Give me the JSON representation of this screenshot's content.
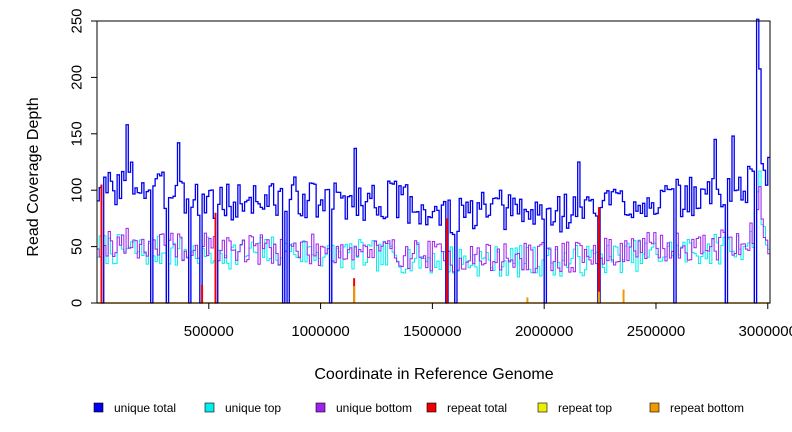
{
  "chart_data": {
    "type": "line",
    "title": "",
    "xlabel": "Coordinate in Reference Genome",
    "ylabel": "Read Coverage Depth",
    "xlim": [
      0,
      3000000
    ],
    "ylim": [
      0,
      250
    ],
    "x_ticks": [
      500000,
      1000000,
      1500000,
      2000000,
      2500000,
      3000000
    ],
    "x_tick_labels": [
      "500000",
      "1000000",
      "1500000",
      "2000000",
      "2500000",
      "3000000"
    ],
    "y_ticks": [
      0,
      50,
      100,
      150,
      200,
      250
    ],
    "y_tick_labels": [
      "0",
      "50",
      "100",
      "150",
      "200",
      "250"
    ],
    "grid": false,
    "legend_position": "bottom",
    "bin_width": 10000,
    "legend": [
      {
        "name": "unique total",
        "color": "#0000EE"
      },
      {
        "name": "unique top",
        "color": "#00EEEE"
      },
      {
        "name": "unique bottom",
        "color": "#A020F0"
      },
      {
        "name": "repeat total",
        "color": "#EE0000"
      },
      {
        "name": "repeat top",
        "color": "#EEEE00"
      },
      {
        "name": "repeat bottom",
        "color": "#EE9A00"
      }
    ],
    "series": [
      {
        "name": "unique total",
        "color": "#0000EE",
        "x": [
          0,
          100000,
          150000,
          200000,
          300000,
          350000,
          400000,
          450000,
          500000,
          600000,
          700000,
          800000,
          900000,
          1000000,
          1100000,
          1200000,
          1300000,
          1400000,
          1500000,
          1600000,
          1700000,
          1800000,
          1900000,
          2000000,
          2100000,
          2200000,
          2300000,
          2400000,
          2500000,
          2600000,
          2700000,
          2800000,
          2900000,
          2940000,
          2950000,
          2960000,
          2970000,
          3000000
        ],
        "y": [
          100,
          105,
          110,
          103,
          98,
          108,
          95,
          90,
          92,
          88,
          93,
          90,
          95,
          88,
          92,
          90,
          92,
          88,
          78,
          75,
          80,
          82,
          80,
          78,
          82,
          85,
          90,
          90,
          92,
          92,
          95,
          98,
          102,
          115,
          245,
          210,
          130,
          115
        ],
        "spikes": [
          {
            "x": 130000,
            "y": 158
          },
          {
            "x": 360000,
            "y": 142
          },
          {
            "x": 1150000,
            "y": 137
          },
          {
            "x": 2150000,
            "y": 125
          },
          {
            "x": 2760000,
            "y": 145
          },
          {
            "x": 2840000,
            "y": 148
          }
        ]
      },
      {
        "name": "unique top",
        "color": "#00EEEE",
        "x": [
          0,
          200000,
          400000,
          600000,
          800000,
          1000000,
          1200000,
          1400000,
          1600000,
          1800000,
          2000000,
          2200000,
          2400000,
          2600000,
          2800000,
          2940000,
          2955000,
          2970000,
          3000000
        ],
        "y": [
          48,
          46,
          45,
          44,
          46,
          44,
          42,
          40,
          38,
          37,
          37,
          38,
          42,
          45,
          48,
          55,
          138,
          70,
          55
        ]
      },
      {
        "name": "unique bottom",
        "color": "#A020F0",
        "x": [
          0,
          200000,
          400000,
          600000,
          800000,
          1000000,
          1200000,
          1400000,
          1600000,
          1800000,
          2000000,
          2200000,
          2400000,
          2600000,
          2800000,
          2940000,
          2955000,
          2970000,
          3000000
        ],
        "y": [
          55,
          52,
          50,
          48,
          48,
          47,
          46,
          44,
          40,
          40,
          40,
          42,
          48,
          50,
          52,
          58,
          105,
          62,
          50
        ]
      },
      {
        "name": "repeat total",
        "color": "#EE0000",
        "x": [
          20000,
          470000,
          530000,
          1150000,
          1565000,
          2245000
        ],
        "y": [
          105,
          16,
          80,
          22,
          75,
          85
        ]
      },
      {
        "name": "repeat top",
        "color": "#EEEE00",
        "x": [],
        "y": []
      },
      {
        "name": "repeat bottom",
        "color": "#EE9A00",
        "x": [
          1150000,
          1925000,
          2245000,
          2355000
        ],
        "y": [
          15,
          5,
          10,
          12
        ]
      }
    ],
    "zero_coverage_x": [
      20000,
      240000,
      310000,
      410000,
      460000,
      530000,
      830000,
      850000,
      1040000,
      1560000,
      1600000,
      2000000,
      2240000,
      2580000,
      2810000,
      2940000
    ]
  }
}
